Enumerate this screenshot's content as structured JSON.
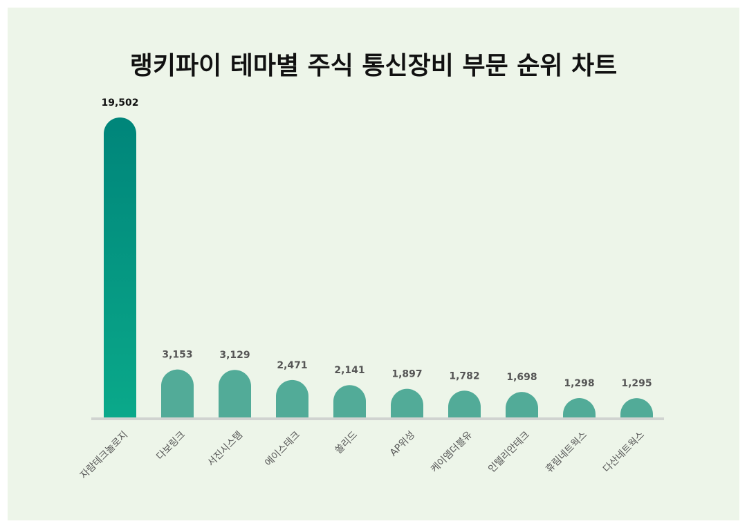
{
  "chart_data": {
    "type": "bar",
    "title": "랭키파이 테마별 주식 통신장비 부문 순위 차트",
    "categories": [
      "자람테크놀로지",
      "다보링크",
      "서진시스템",
      "에이스테크",
      "쏠리드",
      "AP위성",
      "케이엠더블유",
      "인텔리안테크",
      "휴림네트웍스",
      "다산네트웍스"
    ],
    "values": [
      19502,
      3153,
      3129,
      2471,
      2141,
      1897,
      1782,
      1698,
      1298,
      1295
    ],
    "value_labels": [
      "19,502",
      "3,153",
      "3,129",
      "2,471",
      "2,141",
      "1,897",
      "1,782",
      "1,698",
      "1,298",
      "1,295"
    ],
    "xlabel": "",
    "ylabel": "",
    "grid": false,
    "legend": "none",
    "colors": {
      "top_bar_top": "#00857a",
      "top_bar_bottom": "#0aa98a",
      "bar": "#52ab98",
      "axis": "#d0d3d0",
      "top_label": "#111111",
      "label": "#555555",
      "background": "#edf5e9"
    }
  }
}
